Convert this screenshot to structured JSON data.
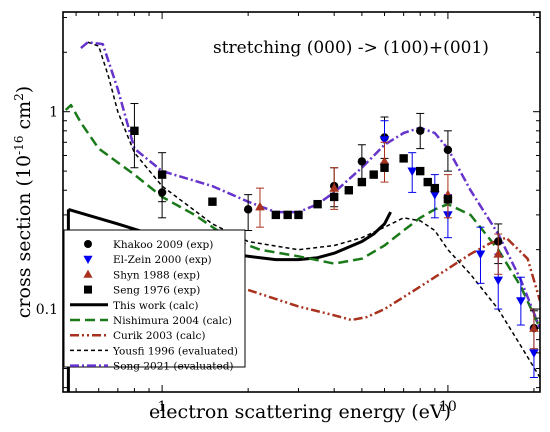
{
  "chart_data": {
    "type": "line",
    "annotation": "stretching (000) -> (100)+(001)",
    "xlabel": "electron scattering energy (eV)",
    "ylabel": "cross section (10",
    "ylabel_exp": "-16",
    "ylabel_unit": " cm",
    "ylabel_unit_exp": "2",
    "ylabel_close": ")",
    "x_scale": "log",
    "y_scale": "log",
    "xlim": [
      0.45,
      21
    ],
    "ylim": [
      0.038,
      3.2
    ],
    "x_tick_labels": [
      {
        "value": 1,
        "label": "1"
      },
      {
        "value": 10,
        "label": "10"
      }
    ],
    "y_tick_labels": [
      {
        "value": 0.1,
        "label": "0.1"
      },
      {
        "value": 1,
        "label": "1"
      }
    ],
    "legend_position": "bottom-left",
    "series": [
      {
        "name": "Khakoo 2009 (exp)",
        "kind": "points",
        "marker": "circle",
        "color": "#000000",
        "points": [
          {
            "x": 1.0,
            "y": 0.39,
            "lo": 0.29,
            "hi": 0.5
          },
          {
            "x": 2.0,
            "y": 0.32,
            "lo": 0.25,
            "hi": 0.38
          },
          {
            "x": 4.0,
            "y": 0.42,
            "lo": 0.33,
            "hi": 0.52
          },
          {
            "x": 5.0,
            "y": 0.56,
            "lo": 0.44,
            "hi": 0.68
          },
          {
            "x": 6.0,
            "y": 0.74,
            "lo": 0.58,
            "hi": 0.94
          },
          {
            "x": 8.0,
            "y": 0.8,
            "lo": 0.65,
            "hi": 0.98
          },
          {
            "x": 10.0,
            "y": 0.64,
            "lo": 0.5,
            "hi": 0.8
          },
          {
            "x": 15.0,
            "y": 0.22,
            "lo": 0.17,
            "hi": 0.27
          },
          {
            "x": 20.0,
            "y": 0.08,
            "lo": 0.062,
            "hi": 0.098
          }
        ]
      },
      {
        "name": "El-Zein 2000 (exp)",
        "kind": "points",
        "marker": "triangle-down",
        "color": "#0000ee",
        "points": [
          {
            "x": 6.0,
            "y": 0.72,
            "lo": 0.55,
            "hi": 0.9
          },
          {
            "x": 7.5,
            "y": 0.5,
            "lo": 0.39,
            "hi": 0.62
          },
          {
            "x": 9.0,
            "y": 0.38,
            "lo": 0.29,
            "hi": 0.48
          },
          {
            "x": 10.0,
            "y": 0.3,
            "lo": 0.23,
            "hi": 0.38
          },
          {
            "x": 13.0,
            "y": 0.19,
            "lo": 0.135,
            "hi": 0.26
          },
          {
            "x": 15.0,
            "y": 0.14,
            "lo": 0.1,
            "hi": 0.19
          },
          {
            "x": 18.0,
            "y": 0.11,
            "lo": 0.083,
            "hi": 0.145
          },
          {
            "x": 20.0,
            "y": 0.06,
            "lo": 0.045,
            "hi": 0.08
          }
        ]
      },
      {
        "name": "Shyn 1988 (exp)",
        "kind": "points",
        "marker": "triangle-up",
        "color": "#a8321e",
        "points": [
          {
            "x": 2.2,
            "y": 0.33,
            "lo": 0.26,
            "hi": 0.41
          },
          {
            "x": 4.0,
            "y": 0.41,
            "lo": 0.32,
            "hi": 0.52
          },
          {
            "x": 6.0,
            "y": 0.56,
            "lo": 0.44,
            "hi": 0.7
          },
          {
            "x": 10.0,
            "y": 0.38,
            "lo": 0.29,
            "hi": 0.48
          },
          {
            "x": 15.0,
            "y": 0.19,
            "lo": 0.15,
            "hi": 0.24
          },
          {
            "x": 20.0,
            "y": 0.08,
            "lo": 0.063,
            "hi": 0.1
          }
        ]
      },
      {
        "name": "Seng 1976 (exp)",
        "kind": "points",
        "marker": "square",
        "color": "#000000",
        "points": [
          {
            "x": 0.8,
            "y": 0.8,
            "lo": 0.52,
            "hi": 1.1
          },
          {
            "x": 1.0,
            "y": 0.48,
            "lo": 0.35,
            "hi": 0.62
          },
          {
            "x": 1.5,
            "y": 0.35
          },
          {
            "x": 2.5,
            "y": 0.3
          },
          {
            "x": 2.75,
            "y": 0.3
          },
          {
            "x": 3.0,
            "y": 0.3
          },
          {
            "x": 3.5,
            "y": 0.34
          },
          {
            "x": 4.0,
            "y": 0.37
          },
          {
            "x": 4.5,
            "y": 0.4
          },
          {
            "x": 5.0,
            "y": 0.44
          },
          {
            "x": 5.5,
            "y": 0.48
          },
          {
            "x": 6.0,
            "y": 0.52
          },
          {
            "x": 7.0,
            "y": 0.58
          },
          {
            "x": 8.0,
            "y": 0.5
          },
          {
            "x": 8.5,
            "y": 0.44
          },
          {
            "x": 9.0,
            "y": 0.41
          },
          {
            "x": 10.0,
            "y": 0.36
          }
        ]
      },
      {
        "name": "This work (calc)",
        "kind": "line",
        "color": "#000000",
        "dash": "solid",
        "width": 3,
        "points": [
          [
            0.47,
            0.32
          ],
          [
            0.7,
            0.27
          ],
          [
            1.0,
            0.23
          ],
          [
            1.5,
            0.2
          ],
          [
            2.0,
            0.185
          ],
          [
            2.5,
            0.178
          ],
          [
            3.0,
            0.178
          ],
          [
            3.5,
            0.182
          ],
          [
            4.0,
            0.192
          ],
          [
            5.0,
            0.22
          ],
          [
            5.5,
            0.24
          ],
          [
            6.0,
            0.27
          ],
          [
            6.3,
            0.31
          ]
        ]
      },
      {
        "name": "Nishimura 2004 (calc)",
        "kind": "line",
        "color": "#1a7a1a",
        "dash": "long",
        "width": 2.5,
        "points": [
          [
            0.46,
            1.02
          ],
          [
            0.48,
            1.08
          ],
          [
            0.52,
            0.88
          ],
          [
            0.6,
            0.65
          ],
          [
            0.8,
            0.48
          ],
          [
            1.0,
            0.37
          ],
          [
            1.3,
            0.3
          ],
          [
            1.7,
            0.23
          ],
          [
            2.2,
            0.2
          ],
          [
            3.0,
            0.185
          ],
          [
            4.0,
            0.17
          ],
          [
            5.0,
            0.18
          ],
          [
            6.0,
            0.21
          ],
          [
            7.0,
            0.25
          ],
          [
            8.0,
            0.29
          ],
          [
            9.0,
            0.32
          ],
          [
            10.0,
            0.34
          ],
          [
            12.0,
            0.3
          ],
          [
            15.0,
            0.2
          ],
          [
            18.0,
            0.13
          ],
          [
            21.0,
            0.08
          ]
        ]
      },
      {
        "name": "Curik 2003 (calc)",
        "kind": "line",
        "color": "#a8321e",
        "dash": "dashdotdot",
        "width": 2.5,
        "points": [
          [
            2.0,
            0.125
          ],
          [
            3.0,
            0.103
          ],
          [
            4.0,
            0.093
          ],
          [
            4.6,
            0.088
          ],
          [
            5.2,
            0.091
          ],
          [
            6.0,
            0.1
          ],
          [
            7.0,
            0.115
          ],
          [
            8.0,
            0.13
          ],
          [
            9.0,
            0.145
          ],
          [
            10.0,
            0.16
          ],
          [
            12.0,
            0.19
          ],
          [
            14.0,
            0.215
          ],
          [
            16.0,
            0.23
          ],
          [
            19.0,
            0.18
          ],
          [
            21.0,
            0.11
          ]
        ]
      },
      {
        "name": "Yousfi 1996 (evaluated)",
        "kind": "line",
        "color": "#000000",
        "dash": "short",
        "width": 1.5,
        "points": [
          [
            0.55,
            2.25
          ],
          [
            0.6,
            2.15
          ],
          [
            0.65,
            1.5
          ],
          [
            0.7,
            1.0
          ],
          [
            0.8,
            0.62
          ],
          [
            1.0,
            0.42
          ],
          [
            1.5,
            0.27
          ],
          [
            2.0,
            0.22
          ],
          [
            3.0,
            0.2
          ],
          [
            4.0,
            0.21
          ],
          [
            5.0,
            0.23
          ],
          [
            6.0,
            0.26
          ],
          [
            7.0,
            0.29
          ],
          [
            8.0,
            0.28
          ],
          [
            9.0,
            0.25
          ],
          [
            10.0,
            0.2
          ],
          [
            12.0,
            0.15
          ],
          [
            15.0,
            0.1
          ],
          [
            18.0,
            0.065
          ],
          [
            21.0,
            0.045
          ]
        ]
      },
      {
        "name": "Song 2021 (evaluated)",
        "kind": "line",
        "color": "#6633cc",
        "dash": "dashdot",
        "width": 2.5,
        "points": [
          [
            0.52,
            2.1
          ],
          [
            0.55,
            2.25
          ],
          [
            0.62,
            2.2
          ],
          [
            0.7,
            1.3
          ],
          [
            0.8,
            0.65
          ],
          [
            1.0,
            0.5
          ],
          [
            1.5,
            0.42
          ],
          [
            2.0,
            0.35
          ],
          [
            2.5,
            0.31
          ],
          [
            3.0,
            0.31
          ],
          [
            3.5,
            0.34
          ],
          [
            4.0,
            0.39
          ],
          [
            5.0,
            0.52
          ],
          [
            6.0,
            0.68
          ],
          [
            7.0,
            0.78
          ],
          [
            8.0,
            0.83
          ],
          [
            9.0,
            0.78
          ],
          [
            10.0,
            0.65
          ],
          [
            12.0,
            0.4
          ],
          [
            15.0,
            0.24
          ],
          [
            18.0,
            0.14
          ],
          [
            21.0,
            0.08
          ]
        ]
      }
    ]
  }
}
